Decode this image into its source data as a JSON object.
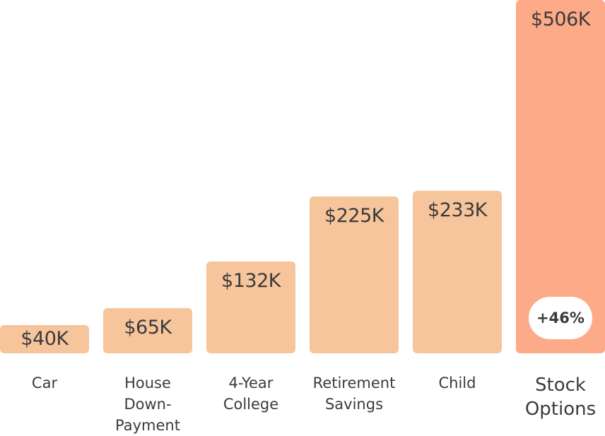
{
  "chart_data": {
    "type": "bar",
    "categories": [
      "Car",
      "House\nDown-\nPayment",
      "4-Year\nCollege",
      "Retirement\nSavings",
      "Child",
      "Stock\nOptions"
    ],
    "values": [
      40,
      65,
      132,
      225,
      233,
      506
    ],
    "value_labels": [
      "$40K",
      "$65K",
      "$132K",
      "$225K",
      "$233K",
      "$506K"
    ],
    "unit": "K USD",
    "highlight_index": 5,
    "highlight_badge": "+46%",
    "colors": {
      "bar": "#f7c59c",
      "highlight": "#fdaa88",
      "text": "#3b3b3b",
      "badge_bg": "#ffffff"
    },
    "grid": false,
    "legend": "none"
  }
}
